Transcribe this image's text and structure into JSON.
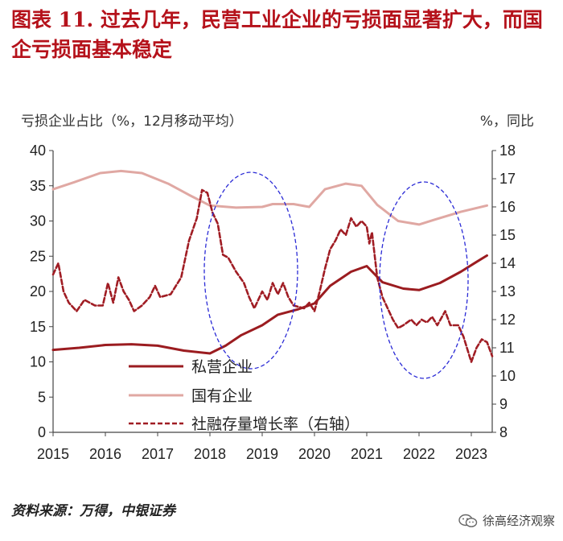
{
  "title": "图表 11. 过去几年，民营工业企业的亏损面显著扩大，而国企亏损面基本稳定",
  "left_axis_label": "亏损企业占比（%，12月移动平均）",
  "right_axis_label": "%，同比",
  "source": "资料来源：万得，中银证券",
  "watermark": "徐高经济观察",
  "chart_data": {
    "type": "line",
    "x_ticks": [
      "2015",
      "2016",
      "2017",
      "2018",
      "2019",
      "2020",
      "2021",
      "2022",
      "2023"
    ],
    "xlim": [
      2015.0,
      2023.4
    ],
    "ylim": [
      0,
      40
    ],
    "y_ticks": [
      0,
      5,
      10,
      15,
      20,
      25,
      30,
      35,
      40
    ],
    "y2lim": [
      8,
      18
    ],
    "y2_ticks": [
      8,
      9,
      10,
      11,
      12,
      13,
      14,
      15,
      16,
      17,
      18
    ],
    "legend_position": "center-left",
    "series": [
      {
        "name": "私营企业",
        "axis": "left",
        "color": "#9b1c20",
        "style": "solid",
        "points": [
          [
            2015.0,
            11.7
          ],
          [
            2015.5,
            12.0
          ],
          [
            2016.0,
            12.4
          ],
          [
            2016.5,
            12.5
          ],
          [
            2017.0,
            12.3
          ],
          [
            2017.5,
            11.6
          ],
          [
            2018.0,
            11.2
          ],
          [
            2018.3,
            12.3
          ],
          [
            2018.6,
            13.8
          ],
          [
            2019.0,
            15.2
          ],
          [
            2019.3,
            16.7
          ],
          [
            2019.7,
            17.5
          ],
          [
            2020.0,
            18.3
          ],
          [
            2020.3,
            20.8
          ],
          [
            2020.7,
            22.8
          ],
          [
            2021.0,
            23.6
          ],
          [
            2021.3,
            21.3
          ],
          [
            2021.7,
            20.4
          ],
          [
            2022.0,
            20.2
          ],
          [
            2022.4,
            21.2
          ],
          [
            2022.8,
            22.8
          ],
          [
            2023.1,
            24.2
          ],
          [
            2023.3,
            25.1
          ]
        ]
      },
      {
        "name": "国有企业",
        "axis": "left",
        "color": "#e0a8a3",
        "style": "solid",
        "points": [
          [
            2015.0,
            34.5
          ],
          [
            2015.4,
            35.5
          ],
          [
            2015.9,
            36.8
          ],
          [
            2016.3,
            37.1
          ],
          [
            2016.7,
            36.8
          ],
          [
            2017.2,
            35.3
          ],
          [
            2017.6,
            33.7
          ],
          [
            2018.0,
            32.2
          ],
          [
            2018.5,
            31.9
          ],
          [
            2019.0,
            32.0
          ],
          [
            2019.2,
            32.4
          ],
          [
            2019.6,
            32.4
          ],
          [
            2019.9,
            32.0
          ],
          [
            2020.2,
            34.5
          ],
          [
            2020.6,
            35.3
          ],
          [
            2020.9,
            35.0
          ],
          [
            2021.2,
            32.3
          ],
          [
            2021.6,
            30.0
          ],
          [
            2022.0,
            29.5
          ],
          [
            2022.3,
            30.2
          ],
          [
            2022.8,
            31.3
          ],
          [
            2023.3,
            32.2
          ]
        ]
      },
      {
        "name": "社融存量增长率（右轴）",
        "axis": "right",
        "color": "#a01d24",
        "style": "dashed",
        "points": [
          [
            2015.0,
            13.6
          ],
          [
            2015.1,
            14.0
          ],
          [
            2015.2,
            13.0
          ],
          [
            2015.3,
            12.6
          ],
          [
            2015.45,
            12.3
          ],
          [
            2015.6,
            12.7
          ],
          [
            2015.8,
            12.5
          ],
          [
            2015.95,
            12.5
          ],
          [
            2016.05,
            13.3
          ],
          [
            2016.15,
            12.6
          ],
          [
            2016.25,
            13.5
          ],
          [
            2016.35,
            13.0
          ],
          [
            2016.45,
            12.7
          ],
          [
            2016.55,
            12.3
          ],
          [
            2016.7,
            12.5
          ],
          [
            2016.85,
            12.8
          ],
          [
            2016.95,
            13.2
          ],
          [
            2017.05,
            12.8
          ],
          [
            2017.25,
            12.9
          ],
          [
            2017.45,
            13.5
          ],
          [
            2017.6,
            14.8
          ],
          [
            2017.75,
            15.6
          ],
          [
            2017.85,
            16.6
          ],
          [
            2017.95,
            16.5
          ],
          [
            2018.05,
            15.8
          ],
          [
            2018.15,
            15.4
          ],
          [
            2018.25,
            14.3
          ],
          [
            2018.35,
            14.2
          ],
          [
            2018.5,
            13.7
          ],
          [
            2018.65,
            13.3
          ],
          [
            2018.75,
            12.8
          ],
          [
            2018.85,
            12.4
          ],
          [
            2019.0,
            13.0
          ],
          [
            2019.1,
            12.7
          ],
          [
            2019.2,
            13.3
          ],
          [
            2019.3,
            12.9
          ],
          [
            2019.4,
            13.3
          ],
          [
            2019.5,
            12.8
          ],
          [
            2019.6,
            12.5
          ],
          [
            2019.8,
            12.4
          ],
          [
            2019.9,
            12.6
          ],
          [
            2020.0,
            12.3
          ],
          [
            2020.1,
            13.0
          ],
          [
            2020.2,
            13.8
          ],
          [
            2020.3,
            14.5
          ],
          [
            2020.4,
            14.8
          ],
          [
            2020.5,
            15.2
          ],
          [
            2020.6,
            15.0
          ],
          [
            2020.7,
            15.6
          ],
          [
            2020.8,
            15.3
          ],
          [
            2020.9,
            15.5
          ],
          [
            2021.0,
            15.3
          ],
          [
            2021.05,
            14.7
          ],
          [
            2021.1,
            15.1
          ],
          [
            2021.2,
            13.5
          ],
          [
            2021.3,
            12.8
          ],
          [
            2021.4,
            12.4
          ],
          [
            2021.5,
            12.0
          ],
          [
            2021.6,
            11.7
          ],
          [
            2021.7,
            11.8
          ],
          [
            2021.85,
            12.0
          ],
          [
            2021.95,
            11.8
          ],
          [
            2022.05,
            12.0
          ],
          [
            2022.15,
            11.9
          ],
          [
            2022.25,
            12.1
          ],
          [
            2022.35,
            11.8
          ],
          [
            2022.5,
            12.3
          ],
          [
            2022.6,
            11.8
          ],
          [
            2022.75,
            11.8
          ],
          [
            2022.85,
            11.4
          ],
          [
            2022.95,
            10.8
          ],
          [
            2023.0,
            10.5
          ],
          [
            2023.1,
            11.0
          ],
          [
            2023.2,
            11.3
          ],
          [
            2023.3,
            11.2
          ],
          [
            2023.4,
            10.7
          ]
        ]
      }
    ]
  }
}
